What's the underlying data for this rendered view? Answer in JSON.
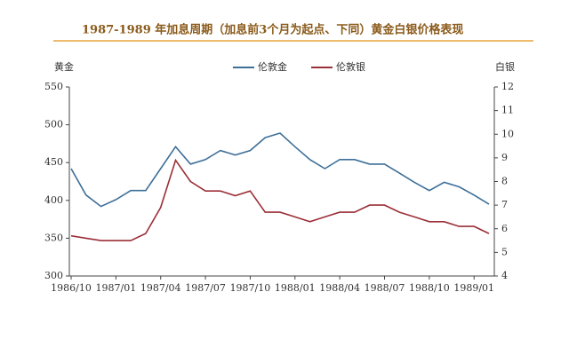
{
  "chart_data": {
    "type": "line",
    "title": "1987-1989 年加息周期（加息前3个月为起点、下同）黄金白银价格表现",
    "y_label": "黄金",
    "y2_label": "白银",
    "categories": [
      "1986/10",
      null,
      null,
      "1987/01",
      null,
      null,
      "1987/04",
      null,
      null,
      "1987/07",
      null,
      null,
      "1987/10",
      null,
      null,
      "1988/01",
      null,
      null,
      "1988/04",
      null,
      null,
      "1988/07",
      null,
      null,
      "1988/10",
      null,
      null,
      "1989/01",
      null
    ],
    "series": [
      {
        "name": "伦敦金",
        "color": "#3d6f99",
        "values": [
          442,
          407,
          392,
          401,
          413,
          413,
          442,
          471,
          448,
          454,
          466,
          460,
          466,
          483,
          489,
          471,
          454,
          442,
          454,
          454,
          448,
          448,
          436,
          424,
          413,
          424,
          418,
          407,
          395
        ]
      },
      {
        "name": "伦敦银",
        "color": "#9b2f37",
        "axis": "y2",
        "values": [
          5.7,
          5.6,
          5.5,
          5.5,
          5.5,
          5.8,
          6.9,
          8.9,
          8.0,
          7.6,
          7.6,
          7.4,
          7.6,
          6.7,
          6.7,
          6.5,
          6.3,
          6.5,
          6.7,
          6.7,
          7.0,
          7.0,
          6.7,
          6.5,
          6.3,
          6.3,
          6.1,
          6.1,
          5.8
        ]
      }
    ],
    "ylim": [
      300,
      550
    ],
    "yticks": [
      300,
      350,
      400,
      450,
      500,
      550
    ],
    "y2lim": [
      4,
      12
    ],
    "y2ticks": [
      4,
      5,
      6,
      7,
      8,
      9,
      10,
      11,
      12
    ],
    "legend": "top"
  }
}
